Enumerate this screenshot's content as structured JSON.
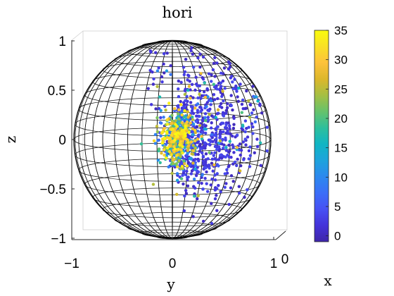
{
  "chart_data": {
    "type": "scatter",
    "title": "hori",
    "xlabel": "x",
    "ylabel": "y",
    "zlabel": "z",
    "view": "3-D scatter on a unit-sphere wireframe, viewed almost along the x axis",
    "y_ticks": [
      "−1",
      "0",
      "1"
    ],
    "z_ticks": [
      "1",
      "0.5",
      "0",
      "−0.5",
      "−1"
    ],
    "x_ticks": [
      "0"
    ],
    "ylim": [
      -1,
      1
    ],
    "zlim": [
      -1,
      1
    ],
    "grid": true,
    "colorbar": {
      "colormap": "parula",
      "range": [
        -1,
        35
      ],
      "ticks": [
        "35",
        "30",
        "25",
        "20",
        "15",
        "10",
        "5",
        "0"
      ],
      "colors": [
        "#3e26a8",
        "#4433d9",
        "#4751f4",
        "#3b6ef8",
        "#2c89ee",
        "#1ea3dc",
        "#0fb5c4",
        "#2ebf9c",
        "#66c26c",
        "#a5bf43",
        "#dcb72b",
        "#fdc23b",
        "#f9e025",
        "#f9fb0e"
      ]
    },
    "series": [
      {
        "description": "points on the sphere surface; dense cluster near (y=0.05, z=0), scattered points spreading toward positive y",
        "approximate_extent": {
          "y": [
            -0.3,
            1.0
          ],
          "z": [
            -0.65,
            0.95
          ]
        },
        "cluster_center": {
          "y": 0.05,
          "z": 0.0
        },
        "color_value_range": [
          0,
          35
        ]
      }
    ]
  }
}
